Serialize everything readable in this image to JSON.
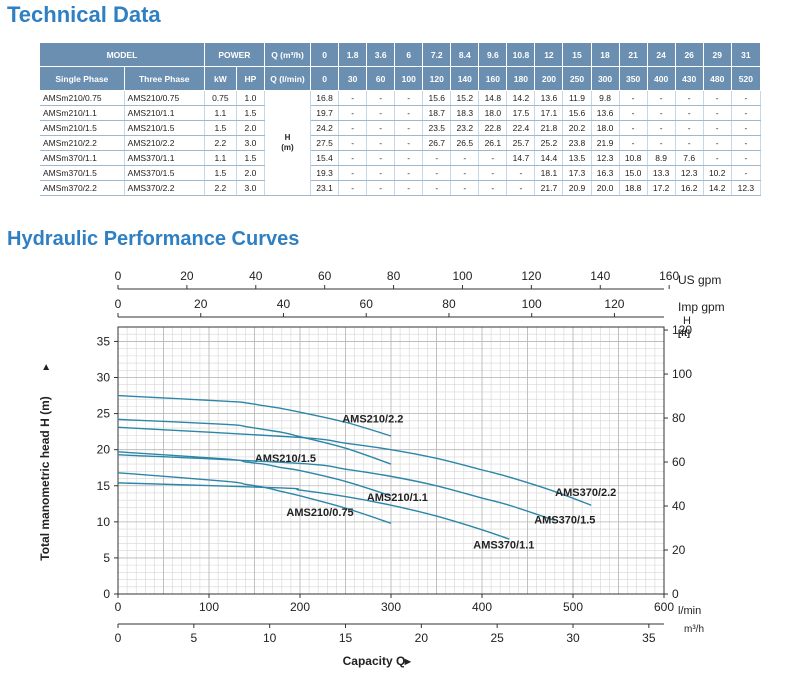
{
  "section_titles": {
    "technical": "Technical Data",
    "curves": "Hydraulic Performance Curves"
  },
  "table": {
    "header_model": "MODEL",
    "header_power": "POWER",
    "header_q_m3h": "Q (m³/h)",
    "header_single": "Single Phase",
    "header_three": "Three Phase",
    "header_kw": "kW",
    "header_hp": "HP",
    "header_q_lmin": "Q (l/min)",
    "h_label": "H",
    "h_unit": "(m)",
    "q_m3h": [
      "0",
      "1.8",
      "3.6",
      "6",
      "7.2",
      "8.4",
      "9.6",
      "10.8",
      "12",
      "15",
      "18",
      "21",
      "24",
      "26",
      "29",
      "31"
    ],
    "q_lmin": [
      "0",
      "30",
      "60",
      "100",
      "120",
      "140",
      "160",
      "180",
      "200",
      "250",
      "300",
      "350",
      "400",
      "430",
      "480",
      "520"
    ],
    "rows": [
      {
        "single": "AMSm210/0.75",
        "three": "AMS210/0.75",
        "kw": "0.75",
        "hp": "1.0",
        "h": [
          "16.8",
          "-",
          "-",
          "-",
          "15.6",
          "15.2",
          "14.8",
          "14.2",
          "13.6",
          "11.9",
          "9.8",
          "-",
          "-",
          "-",
          "-",
          "-"
        ]
      },
      {
        "single": "AMSm210/1.1",
        "three": "AMS210/1.1",
        "kw": "1.1",
        "hp": "1.5",
        "h": [
          "19.7",
          "-",
          "-",
          "-",
          "18.7",
          "18.3",
          "18.0",
          "17.5",
          "17.1",
          "15.6",
          "13.6",
          "-",
          "-",
          "-",
          "-",
          "-"
        ]
      },
      {
        "single": "AMSm210/1.5",
        "three": "AMS210/1.5",
        "kw": "1.5",
        "hp": "2.0",
        "h": [
          "24.2",
          "-",
          "-",
          "-",
          "23.5",
          "23.2",
          "22.8",
          "22.4",
          "21.8",
          "20.2",
          "18.0",
          "-",
          "-",
          "-",
          "-",
          "-"
        ]
      },
      {
        "single": "AMSm210/2.2",
        "three": "AMS210/2.2",
        "kw": "2.2",
        "hp": "3.0",
        "h": [
          "27.5",
          "-",
          "-",
          "-",
          "26.7",
          "26.5",
          "26.1",
          "25.7",
          "25.2",
          "23.8",
          "21.9",
          "-",
          "-",
          "-",
          "-",
          "-"
        ]
      },
      {
        "single": "AMSm370/1.1",
        "three": "AMS370/1.1",
        "kw": "1.1",
        "hp": "1.5",
        "h": [
          "15.4",
          "-",
          "-",
          "-",
          "-",
          "-",
          "-",
          "14.7",
          "14.4",
          "13.5",
          "12.3",
          "10.8",
          "8.9",
          "7.6",
          "-",
          "-"
        ]
      },
      {
        "single": "AMSm370/1.5",
        "three": "AMS370/1.5",
        "kw": "1.5",
        "hp": "2.0",
        "h": [
          "19.3",
          "-",
          "-",
          "-",
          "-",
          "-",
          "-",
          "-",
          "18.1",
          "17.3",
          "16.3",
          "15.0",
          "13.3",
          "12.3",
          "10.2",
          "-"
        ]
      },
      {
        "single": "AMSm370/2.2",
        "three": "AMS370/2.2",
        "kw": "2.2",
        "hp": "3.0",
        "h": [
          "23.1",
          "-",
          "-",
          "-",
          "-",
          "-",
          "-",
          "-",
          "21.7",
          "20.9",
          "20.0",
          "18.8",
          "17.2",
          "16.2",
          "14.2",
          "12.3"
        ]
      }
    ]
  },
  "chart_data": {
    "type": "line",
    "title": "Hydraulic Performance Curves",
    "xlabel": "Capacity Q",
    "ylabel": "Total manometric head H (m)",
    "x_unit": "l/min",
    "xlim": [
      0,
      600
    ],
    "ylim": [
      0,
      37
    ],
    "x_ticks": [
      0,
      100,
      200,
      300,
      400,
      500,
      600
    ],
    "y_ticks": [
      0,
      5,
      10,
      15,
      20,
      25,
      30,
      35
    ],
    "grid": true,
    "secondary_axes": {
      "us_gpm": {
        "label": "US gpm",
        "ticks": [
          0,
          20,
          40,
          60,
          80,
          100,
          120,
          140,
          160
        ]
      },
      "imp_gpm": {
        "label": "Imp gpm",
        "ticks": [
          0,
          20,
          40,
          60,
          80,
          100,
          120
        ]
      },
      "m3h": {
        "label": "m³/h",
        "ticks": [
          0,
          5,
          10,
          15,
          20,
          25,
          30,
          35
        ]
      },
      "ft": {
        "label": "H",
        "unit": "[ft]",
        "ticks": [
          0,
          20,
          40,
          60,
          80,
          100,
          120
        ]
      }
    },
    "series": [
      {
        "name": "AMS210/0.75",
        "x": [
          0,
          120,
          140,
          160,
          180,
          200,
          250,
          300
        ],
        "y": [
          16.8,
          15.6,
          15.2,
          14.8,
          14.2,
          13.6,
          11.9,
          9.8
        ],
        "label_pos": [
          222,
          10.8
        ]
      },
      {
        "name": "AMS210/1.1",
        "x": [
          0,
          120,
          140,
          160,
          180,
          200,
          250,
          300
        ],
        "y": [
          19.7,
          18.7,
          18.3,
          18.0,
          17.5,
          17.1,
          15.6,
          13.6
        ],
        "label_pos": [
          307,
          12.9
        ]
      },
      {
        "name": "AMS210/1.5",
        "x": [
          0,
          120,
          140,
          160,
          180,
          200,
          250,
          300
        ],
        "y": [
          24.2,
          23.5,
          23.2,
          22.8,
          22.4,
          21.8,
          20.2,
          18.0
        ],
        "label_pos": [
          184,
          18.3
        ]
      },
      {
        "name": "AMS210/2.2",
        "x": [
          0,
          120,
          140,
          160,
          180,
          200,
          250,
          300
        ],
        "y": [
          27.5,
          26.7,
          26.5,
          26.1,
          25.7,
          25.2,
          23.8,
          21.9
        ],
        "label_pos": [
          280,
          23.8
        ]
      },
      {
        "name": "AMS370/1.1",
        "x": [
          0,
          180,
          200,
          250,
          300,
          350,
          400,
          430
        ],
        "y": [
          15.4,
          14.7,
          14.4,
          13.5,
          12.3,
          10.8,
          8.9,
          7.6
        ],
        "label_pos": [
          424,
          6.3
        ]
      },
      {
        "name": "AMS370/1.5",
        "x": [
          0,
          200,
          250,
          300,
          350,
          400,
          430,
          480
        ],
        "y": [
          19.3,
          18.1,
          17.3,
          16.3,
          15.0,
          13.3,
          12.3,
          10.2
        ],
        "label_pos": [
          491,
          9.8
        ]
      },
      {
        "name": "AMS370/2.2",
        "x": [
          0,
          200,
          250,
          300,
          350,
          400,
          430,
          480,
          520
        ],
        "y": [
          23.1,
          21.7,
          20.9,
          20.0,
          18.8,
          17.2,
          16.2,
          14.2,
          12.3
        ],
        "label_pos": [
          514,
          13.6
        ]
      }
    ],
    "line_color": "#2c86a8"
  }
}
